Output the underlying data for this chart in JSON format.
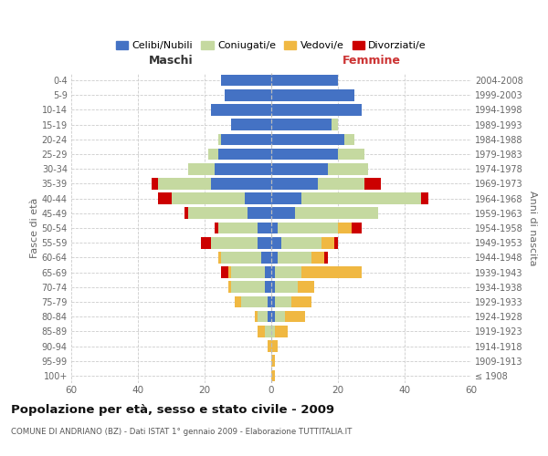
{
  "age_groups": [
    "100+",
    "95-99",
    "90-94",
    "85-89",
    "80-84",
    "75-79",
    "70-74",
    "65-69",
    "60-64",
    "55-59",
    "50-54",
    "45-49",
    "40-44",
    "35-39",
    "30-34",
    "25-29",
    "20-24",
    "15-19",
    "10-14",
    "5-9",
    "0-4"
  ],
  "birth_years": [
    "≤ 1908",
    "1909-1913",
    "1914-1918",
    "1919-1923",
    "1924-1928",
    "1929-1933",
    "1934-1938",
    "1939-1943",
    "1944-1948",
    "1949-1953",
    "1954-1958",
    "1959-1963",
    "1964-1968",
    "1969-1973",
    "1974-1978",
    "1979-1983",
    "1984-1988",
    "1989-1993",
    "1994-1998",
    "1999-2003",
    "2004-2008"
  ],
  "maschi": {
    "celibi": [
      0,
      0,
      0,
      0,
      1,
      1,
      2,
      2,
      3,
      4,
      4,
      7,
      8,
      18,
      17,
      16,
      15,
      12,
      18,
      14,
      15
    ],
    "coniugati": [
      0,
      0,
      0,
      2,
      3,
      8,
      10,
      10,
      12,
      14,
      12,
      18,
      22,
      16,
      8,
      3,
      1,
      0,
      0,
      0,
      0
    ],
    "vedovi": [
      0,
      0,
      1,
      2,
      1,
      2,
      1,
      1,
      1,
      0,
      0,
      0,
      0,
      0,
      0,
      0,
      0,
      0,
      0,
      0,
      0
    ],
    "divorziati": [
      0,
      0,
      0,
      0,
      0,
      0,
      0,
      2,
      0,
      3,
      1,
      1,
      4,
      2,
      0,
      0,
      0,
      0,
      0,
      0,
      0
    ]
  },
  "femmine": {
    "nubili": [
      0,
      0,
      0,
      0,
      1,
      1,
      1,
      1,
      2,
      3,
      2,
      7,
      9,
      14,
      17,
      20,
      22,
      18,
      27,
      25,
      20
    ],
    "coniugate": [
      0,
      0,
      0,
      1,
      3,
      5,
      7,
      8,
      10,
      12,
      18,
      25,
      36,
      14,
      12,
      8,
      3,
      2,
      0,
      0,
      0
    ],
    "vedove": [
      1,
      1,
      2,
      4,
      6,
      6,
      5,
      18,
      4,
      4,
      4,
      0,
      0,
      0,
      0,
      0,
      0,
      0,
      0,
      0,
      0
    ],
    "divorziate": [
      0,
      0,
      0,
      0,
      0,
      0,
      0,
      0,
      1,
      1,
      3,
      0,
      2,
      5,
      0,
      0,
      0,
      0,
      0,
      0,
      0
    ]
  },
  "colors": {
    "celibi_nubili": "#4472c4",
    "coniugati": "#c5d9a0",
    "vedovi": "#f0b842",
    "divorziati": "#cc0000"
  },
  "xlim": 60,
  "title": "Popolazione per età, sesso e stato civile - 2009",
  "subtitle": "COMUNE DI ANDRIANO (BZ) - Dati ISTAT 1° gennaio 2009 - Elaborazione TUTTITALIA.IT",
  "ylabel_left": "Fasce di età",
  "ylabel_right": "Anni di nascita",
  "xlabel_left": "Maschi",
  "xlabel_right": "Femmine",
  "legend_labels": [
    "Celibi/Nubili",
    "Coniugati/e",
    "Vedovi/e",
    "Divorziati/e"
  ],
  "bg_color": "#ffffff",
  "grid_color": "#cccccc"
}
